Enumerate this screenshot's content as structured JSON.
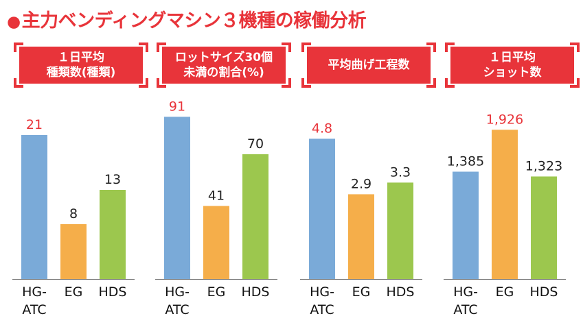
{
  "title": "主力ベンディングマシン３機種の稼働分析",
  "colors": {
    "accent": "#e8343a",
    "hg_atc": "#7aaad8",
    "eg": "#f5ae4a",
    "hds": "#9cc74e",
    "value_text": "#222222",
    "highlight_value_text": "#e8343a"
  },
  "panels": [
    {
      "label_lines": [
        "１日平均",
        "種類数(種類)"
      ]
    },
    {
      "label_lines": [
        "ロットサイズ30個",
        "未満の割合(%)"
      ]
    },
    {
      "label_lines": [
        "平均曲げ工程数"
      ]
    },
    {
      "label_lines": [
        "１日平均",
        "ショット数"
      ]
    }
  ],
  "chart_data": [
    {
      "type": "bar",
      "title": "１日平均種類数(種類)",
      "categories": [
        "HG-ATC",
        "EG",
        "HDS"
      ],
      "category_label_lines": [
        [
          "HG-",
          "ATC"
        ],
        [
          "EG"
        ],
        [
          "HDS"
        ]
      ],
      "values": [
        21,
        8,
        13
      ],
      "value_labels": [
        "21",
        "8",
        "13"
      ],
      "highlight_index": 0,
      "ylim": [
        0,
        26
      ]
    },
    {
      "type": "bar",
      "title": "ロットサイズ30個未満の割合(%)",
      "categories": [
        "HG-ATC",
        "EG",
        "HDS"
      ],
      "category_label_lines": [
        [
          "HG-",
          "ATC"
        ],
        [
          "EG"
        ],
        [
          "HDS"
        ]
      ],
      "values": [
        91,
        41,
        70
      ],
      "value_labels": [
        "91",
        "41",
        "70"
      ],
      "highlight_index": 0,
      "ylim": [
        0,
        100
      ]
    },
    {
      "type": "bar",
      "title": "平均曲げ工程数",
      "categories": [
        "HG-ATC",
        "EG",
        "HDS"
      ],
      "category_label_lines": [
        [
          "HG-",
          "ATC"
        ],
        [
          "EG"
        ],
        [
          "HDS"
        ]
      ],
      "values": [
        4.8,
        2.9,
        3.3
      ],
      "value_labels": [
        "4.8",
        "2.9",
        "3.3"
      ],
      "highlight_index": 0,
      "ylim": [
        0,
        6.1
      ]
    },
    {
      "type": "bar",
      "title": "１日平均ショット数",
      "categories": [
        "HG-ATC",
        "EG",
        "HDS"
      ],
      "category_label_lines": [
        [
          "HG-",
          "ATC"
        ],
        [
          "EG"
        ],
        [
          "HDS"
        ]
      ],
      "values": [
        1385,
        1926,
        1323
      ],
      "value_labels": [
        "1,385",
        "1,926",
        "1,323"
      ],
      "highlight_index": 1,
      "ylim": [
        0,
        2300
      ]
    }
  ]
}
